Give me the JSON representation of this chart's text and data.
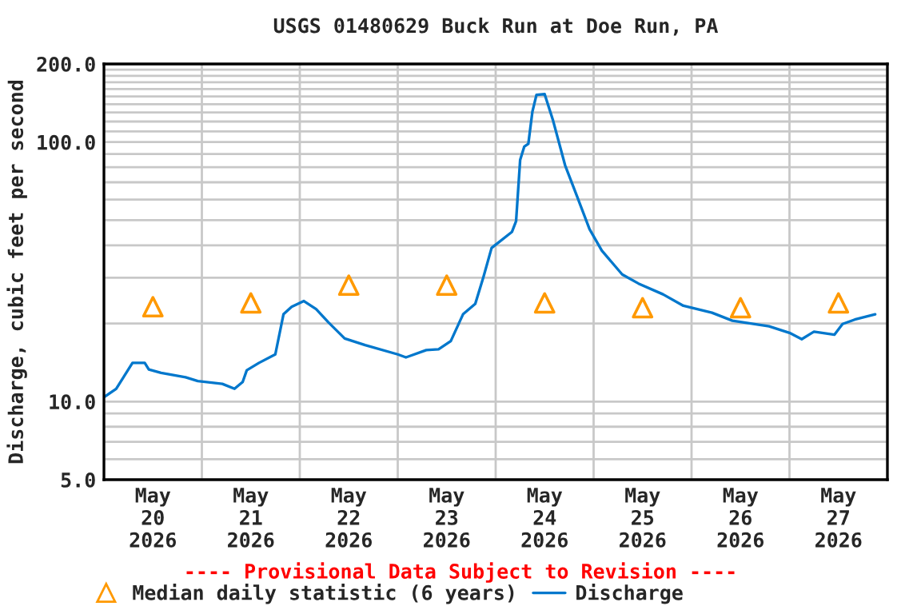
{
  "chart_data": {
    "type": "line",
    "title": "USGS 01480629 Buck Run at Doe Run, PA",
    "ylabel": "Discharge, cubic feet per second",
    "annotations": [
      "---- Provisional Data Subject to Revision ----"
    ],
    "log": "y",
    "grid": true,
    "legend": "bottom",
    "xlim": [
      "2026-05-20T00:00",
      "2026-05-28T00:00"
    ],
    "xticks": [
      {
        "value": "2026-05-20T00:00",
        "label": null
      },
      {
        "value": "2026-05-21T00:00",
        "label": null
      },
      {
        "value": "2026-05-22T00:00",
        "label": null
      },
      {
        "value": "2026-05-23T00:00",
        "label": null
      },
      {
        "value": "2026-05-24T00:00",
        "label": null
      },
      {
        "value": "2026-05-25T00:00",
        "label": null
      },
      {
        "value": "2026-05-26T00:00",
        "label": null
      },
      {
        "value": "2026-05-27T00:00",
        "label": null
      },
      {
        "value": "2026-05-28T00:00",
        "label": null
      },
      {
        "value": "2026-05-20T12:00",
        "label": "May\n20\n2026"
      },
      {
        "value": "2026-05-21T12:00",
        "label": "May\n21\n2026"
      },
      {
        "value": "2026-05-22T12:00",
        "label": "May\n22\n2026"
      },
      {
        "value": "2026-05-23T12:00",
        "label": "May\n23\n2026"
      },
      {
        "value": "2026-05-24T12:00",
        "label": "May\n24\n2026"
      },
      {
        "value": "2026-05-25T12:00",
        "label": "May\n25\n2026"
      },
      {
        "value": "2026-05-26T12:00",
        "label": "May\n26\n2026"
      },
      {
        "value": "2026-05-27T12:00",
        "label": "May\n27\n2026"
      }
    ],
    "ylim": [
      5,
      200
    ],
    "yticks": [
      {
        "value": 5,
        "label": "5.0"
      },
      {
        "value": 6,
        "label": null
      },
      {
        "value": 7,
        "label": null
      },
      {
        "value": 8,
        "label": null
      },
      {
        "value": 9,
        "label": null
      },
      {
        "value": 10,
        "label": "10.0"
      },
      {
        "value": 20,
        "label": null
      },
      {
        "value": 30,
        "label": null
      },
      {
        "value": 40,
        "label": null
      },
      {
        "value": 50,
        "label": null
      },
      {
        "value": 60,
        "label": null
      },
      {
        "value": 70,
        "label": null
      },
      {
        "value": 80,
        "label": null
      },
      {
        "value": 90,
        "label": null
      },
      {
        "value": 100,
        "label": "100.0"
      },
      {
        "value": 110,
        "label": null
      },
      {
        "value": 120,
        "label": null
      },
      {
        "value": 130,
        "label": null
      },
      {
        "value": 140,
        "label": null
      },
      {
        "value": 150,
        "label": null
      },
      {
        "value": 160,
        "label": null
      },
      {
        "value": 170,
        "label": null
      },
      {
        "value": 180,
        "label": null
      },
      {
        "value": 190,
        "label": null
      },
      {
        "value": 200,
        "label": "200.0"
      }
    ],
    "series": [
      {
        "name": "Median daily statistic (6 years)",
        "type": "scatter",
        "marker": "triangle",
        "color": "#ff9900",
        "x": [
          "2026-05-20T12:00",
          "2026-05-21T12:00",
          "2026-05-22T12:00",
          "2026-05-23T12:00",
          "2026-05-24T12:00",
          "2026-05-25T12:00",
          "2026-05-26T12:00",
          "2026-05-27T12:00"
        ],
        "values": [
          23.2,
          24.0,
          28.1,
          28.1,
          24.0,
          23.0,
          23.0,
          24.0
        ]
      },
      {
        "name": "Discharge",
        "marker": "none",
        "color": "#0077cc",
        "x": [
          "2026-05-20T00:00",
          "2026-05-20T03:00",
          "2026-05-20T07:00",
          "2026-05-20T10:00",
          "2026-05-20T11:00",
          "2026-05-20T14:00",
          "2026-05-20T20:00",
          "2026-05-20T23:00",
          "2026-05-21T05:00",
          "2026-05-21T08:00",
          "2026-05-21T10:00",
          "2026-05-21T11:00",
          "2026-05-21T14:00",
          "2026-05-21T18:00",
          "2026-05-21T20:00",
          "2026-05-21T22:00",
          "2026-05-22T01:00",
          "2026-05-22T04:00",
          "2026-05-22T07:00",
          "2026-05-22T11:00",
          "2026-05-22T16:00",
          "2026-05-23T00:00",
          "2026-05-23T02:00",
          "2026-05-23T07:00",
          "2026-05-23T10:00",
          "2026-05-23T13:00",
          "2026-05-23T16:00",
          "2026-05-23T19:00",
          "2026-05-23T21:00",
          "2026-05-23T23:00",
          "2026-05-24T04:00",
          "2026-05-24T05:00",
          "2026-05-24T06:00",
          "2026-05-24T07:00",
          "2026-05-24T08:00",
          "2026-05-24T09:00",
          "2026-05-24T10:00",
          "2026-05-24T12:00",
          "2026-05-24T14:00",
          "2026-05-24T17:00",
          "2026-05-24T20:00",
          "2026-05-24T23:00",
          "2026-05-25T02:00",
          "2026-05-25T07:00",
          "2026-05-25T11:00",
          "2026-05-25T17:00",
          "2026-05-25T22:00",
          "2026-05-26T05:00",
          "2026-05-26T10:00",
          "2026-05-26T19:00",
          "2026-05-27T00:00",
          "2026-05-27T03:00",
          "2026-05-27T06:00",
          "2026-05-27T11:00",
          "2026-05-27T13:00",
          "2026-05-27T16:00",
          "2026-05-27T21:00"
        ],
        "values": [
          10.4,
          11.2,
          14.1,
          14.1,
          13.3,
          12.9,
          12.4,
          12.0,
          11.7,
          11.2,
          11.9,
          13.2,
          14.1,
          15.2,
          21.7,
          23.2,
          24.4,
          22.7,
          20.2,
          17.5,
          16.5,
          15.2,
          14.8,
          15.8,
          15.9,
          17.1,
          21.7,
          23.8,
          30.2,
          39.1,
          45.1,
          49.6,
          85.4,
          96,
          98.4,
          131,
          152,
          153,
          122,
          81.5,
          61.4,
          46.2,
          38.2,
          30.9,
          28.5,
          25.9,
          23.4,
          22.0,
          20.5,
          19.5,
          18.4,
          17.4,
          18.6,
          18.1,
          19.9,
          20.7,
          21.7
        ]
      }
    ]
  }
}
